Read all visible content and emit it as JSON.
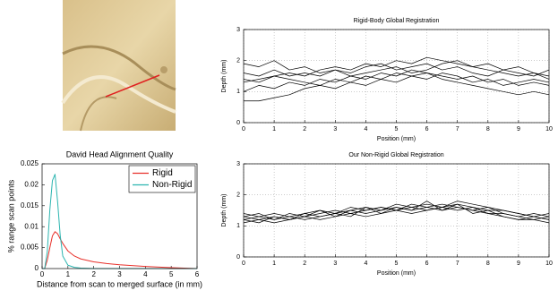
{
  "chart_data": [
    {
      "type": "line",
      "title": "David Head Alignment Quality",
      "x_label": "Distance from scan to merged surface (in mm)",
      "y_label": "% range scan points",
      "x": [
        0,
        0.1,
        0.2,
        0.3,
        0.4,
        0.5,
        0.6,
        0.7,
        0.8,
        1,
        1.25,
        1.5,
        2,
        2.5,
        3,
        4,
        5,
        6
      ],
      "series": [
        {
          "name": "Rigid",
          "color": "#e8302a",
          "values": [
            0,
            0,
            0.002,
            0.005,
            0.0078,
            0.0088,
            0.0083,
            0.0071,
            0.006,
            0.0042,
            0.003,
            0.0023,
            0.0016,
            0.0012,
            0.0009,
            0.0005,
            0.0002,
            0
          ]
        },
        {
          "name": "Non-Rigid",
          "color": "#2cb5b0",
          "values": [
            0,
            0,
            0.004,
            0.014,
            0.021,
            0.0225,
            0.016,
            0.008,
            0.003,
            0.0008,
            0.0003,
            0.0001,
            0,
            0,
            0,
            0,
            0,
            0
          ]
        }
      ],
      "xlim": [
        0,
        6
      ],
      "xticks": [
        0,
        1,
        2,
        3,
        4,
        5,
        6
      ],
      "ylim": [
        0,
        0.025
      ],
      "yticks": [
        0,
        0.005,
        0.01,
        0.015,
        0.02,
        0.025
      ],
      "grid": false,
      "legend": "upper right"
    },
    {
      "type": "line",
      "title": "Rigid-Body Global Registration",
      "x_label": "Position (mm)",
      "y_label": "Depth (mm)",
      "x": [
        0,
        0.5,
        1,
        1.5,
        2,
        2.5,
        3,
        3.5,
        4,
        4.5,
        5,
        5.5,
        6,
        6.5,
        7,
        7.5,
        8,
        8.5,
        9,
        9.5,
        10
      ],
      "series": [
        {
          "color": "#000000",
          "values": [
            1.3,
            1.4,
            1.5,
            1.6,
            1.5,
            1.7,
            1.8,
            1.7,
            1.9,
            1.8,
            2.0,
            1.9,
            2.1,
            2.0,
            1.9,
            1.8,
            1.7,
            1.6,
            1.5,
            1.6,
            1.4
          ]
        },
        {
          "color": "#000000",
          "values": [
            1.6,
            1.5,
            1.7,
            1.5,
            1.6,
            1.5,
            1.7,
            1.6,
            1.8,
            1.9,
            1.7,
            1.8,
            1.9,
            1.7,
            1.8,
            1.6,
            1.5,
            1.7,
            1.6,
            1.5,
            1.7
          ]
        },
        {
          "color": "#000000",
          "values": [
            1.0,
            1.2,
            1.1,
            1.3,
            1.2,
            1.4,
            1.3,
            1.5,
            1.4,
            1.6,
            1.5,
            1.7,
            1.6,
            1.5,
            1.4,
            1.5,
            1.3,
            1.4,
            1.2,
            1.3,
            1.2
          ]
        },
        {
          "color": "#000000",
          "values": [
            1.9,
            1.8,
            2.0,
            1.7,
            1.8,
            1.6,
            1.7,
            1.5,
            1.6,
            1.7,
            1.8,
            1.6,
            1.7,
            1.9,
            2.0,
            1.8,
            1.9,
            1.7,
            1.8,
            1.6,
            1.5
          ]
        },
        {
          "color": "#000000",
          "values": [
            1.4,
            1.3,
            1.5,
            1.4,
            1.3,
            1.2,
            1.4,
            1.3,
            1.5,
            1.4,
            1.6,
            1.5,
            1.4,
            1.6,
            1.5,
            1.3,
            1.4,
            1.2,
            1.3,
            1.4,
            1.3
          ]
        },
        {
          "color": "#000000",
          "values": [
            0.7,
            0.7,
            0.8,
            0.9,
            1.1,
            1.2,
            1.1,
            1.3,
            1.2,
            1.4,
            1.3,
            1.5,
            1.6,
            1.4,
            1.3,
            1.2,
            1.1,
            1.0,
            0.9,
            1.0,
            0.9
          ]
        }
      ],
      "xlim": [
        0,
        10
      ],
      "xticks": [
        0,
        1,
        2,
        3,
        4,
        5,
        6,
        7,
        8,
        9,
        10
      ],
      "ylim": [
        0,
        3
      ],
      "yticks": [
        0,
        1,
        2,
        3
      ],
      "grid": true
    },
    {
      "type": "line",
      "title": "Our Non-Rigid Global Registration",
      "x_label": "Position (mm)",
      "y_label": "Depth (mm)",
      "x": [
        0,
        0.5,
        1,
        1.5,
        2,
        2.5,
        3,
        3.5,
        4,
        4.5,
        5,
        5.5,
        6,
        6.5,
        7,
        7.5,
        8,
        8.5,
        9,
        9.5,
        10
      ],
      "series": [
        {
          "color": "#000000",
          "values": [
            1.2,
            1.3,
            1.2,
            1.3,
            1.4,
            1.3,
            1.4,
            1.5,
            1.4,
            1.5,
            1.6,
            1.5,
            1.6,
            1.7,
            1.6,
            1.5,
            1.6,
            1.4,
            1.3,
            1.4,
            1.3
          ]
        },
        {
          "color": "#000000",
          "values": [
            1.3,
            1.2,
            1.3,
            1.2,
            1.3,
            1.4,
            1.5,
            1.4,
            1.5,
            1.6,
            1.5,
            1.6,
            1.5,
            1.6,
            1.7,
            1.6,
            1.5,
            1.5,
            1.4,
            1.3,
            1.2
          ]
        },
        {
          "color": "#000000",
          "values": [
            1.1,
            1.2,
            1.1,
            1.2,
            1.3,
            1.2,
            1.3,
            1.4,
            1.3,
            1.4,
            1.5,
            1.4,
            1.5,
            1.6,
            1.5,
            1.6,
            1.4,
            1.3,
            1.2,
            1.3,
            1.2
          ]
        },
        {
          "color": "#000000",
          "values": [
            1.4,
            1.3,
            1.4,
            1.3,
            1.2,
            1.3,
            1.4,
            1.3,
            1.6,
            1.5,
            1.7,
            1.6,
            1.7,
            1.6,
            1.8,
            1.7,
            1.6,
            1.5,
            1.4,
            1.3,
            1.4
          ]
        },
        {
          "color": "#000000",
          "values": [
            1.2,
            1.1,
            1.3,
            1.2,
            1.4,
            1.5,
            1.4,
            1.6,
            1.5,
            1.6,
            1.5,
            1.7,
            1.6,
            1.5,
            1.6,
            1.5,
            1.4,
            1.4,
            1.3,
            1.2,
            1.3
          ]
        },
        {
          "color": "#000000",
          "values": [
            1.3,
            1.4,
            1.2,
            1.4,
            1.3,
            1.5,
            1.3,
            1.5,
            1.6,
            1.4,
            1.6,
            1.5,
            1.8,
            1.5,
            1.7,
            1.4,
            1.5,
            1.3,
            1.2,
            1.2,
            1.1
          ]
        }
      ],
      "xlim": [
        0,
        10
      ],
      "xticks": [
        0,
        1,
        2,
        3,
        4,
        5,
        6,
        7,
        8,
        9,
        10
      ],
      "ylim": [
        0,
        3
      ],
      "yticks": [
        0,
        1,
        2,
        3
      ],
      "grid": true
    }
  ]
}
